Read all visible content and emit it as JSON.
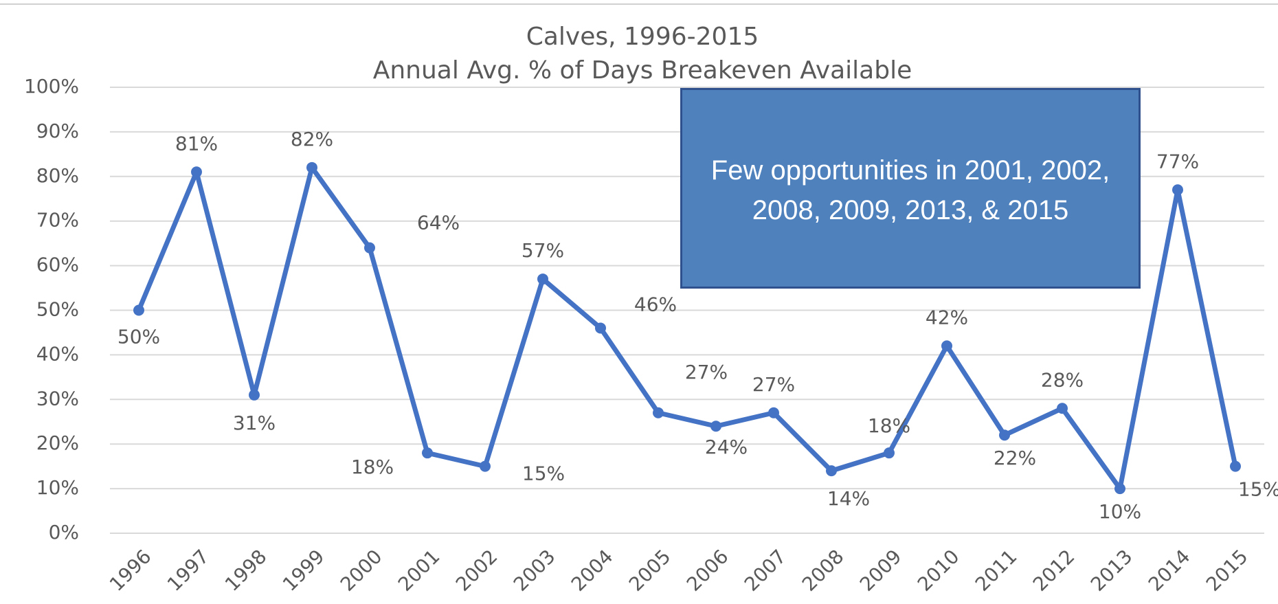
{
  "chart_data": {
    "type": "line",
    "title": "Calves, 1996-2015",
    "subtitle": "Annual Avg. % of Days Breakeven Available",
    "annotation": "Few opportunities in 2001, 2002, 2008, 2009, 2013, & 2015",
    "categories": [
      "1996",
      "1997",
      "1998",
      "1999",
      "2000",
      "2001",
      "2002",
      "2003",
      "2004",
      "2005",
      "2006",
      "2007",
      "2008",
      "2009",
      "2010",
      "2011",
      "2012",
      "2013",
      "2014",
      "2015"
    ],
    "series": [
      {
        "color": "#4472c4",
        "values": [
          50,
          81,
          31,
          82,
          64,
          18,
          15,
          57,
          46,
          27,
          24,
          27,
          14,
          18,
          42,
          22,
          28,
          10,
          77,
          15
        ],
        "value_labels": [
          "50%",
          "81%",
          "31%",
          "82%",
          "64%",
          "18%",
          "15%",
          "57%",
          "46%",
          "27%",
          "24%",
          "27%",
          "14%",
          "18%",
          "42%",
          "22%",
          "28%",
          "10%",
          "77%",
          "15%"
        ]
      }
    ],
    "ylim": [
      0,
      100
    ],
    "yticks": [
      {
        "value": 0,
        "label": "0%"
      },
      {
        "value": 10,
        "label": "10%"
      },
      {
        "value": 20,
        "label": "20%"
      },
      {
        "value": 30,
        "label": "30%"
      },
      {
        "value": 40,
        "label": "40%"
      },
      {
        "value": 50,
        "label": "50%"
      },
      {
        "value": 60,
        "label": "60%"
      },
      {
        "value": 70,
        "label": "70%"
      },
      {
        "value": 80,
        "label": "80%"
      },
      {
        "value": 90,
        "label": "90%"
      },
      {
        "value": 100,
        "label": "100%"
      }
    ],
    "grid": true
  }
}
